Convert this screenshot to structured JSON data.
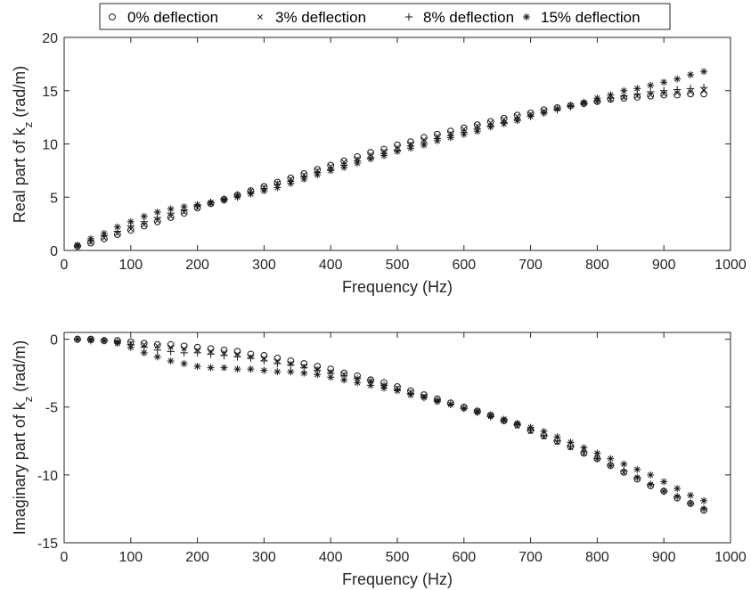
{
  "legend": {
    "items": [
      {
        "marker": "circle",
        "label": "0% deflection"
      },
      {
        "marker": "x",
        "label": "3% deflection"
      },
      {
        "marker": "plus",
        "label": "8% deflection"
      },
      {
        "marker": "star",
        "label": "15% deflection"
      }
    ]
  },
  "chart_data": [
    {
      "type": "scatter",
      "xlabel": "Frequency (Hz)",
      "ylabel_main": "Real part of k",
      "ylabel_sub": "z",
      "ylabel_unit": " (rad/m)",
      "xlim": [
        0,
        1000
      ],
      "ylim": [
        0,
        20
      ],
      "xticks": [
        0,
        100,
        200,
        300,
        400,
        500,
        600,
        700,
        800,
        900,
        1000
      ],
      "yticks": [
        0,
        5,
        10,
        15,
        20
      ],
      "grid": false,
      "x": [
        20,
        40,
        60,
        80,
        100,
        120,
        140,
        160,
        180,
        200,
        220,
        240,
        260,
        280,
        300,
        320,
        340,
        360,
        380,
        400,
        420,
        440,
        460,
        480,
        500,
        520,
        540,
        560,
        580,
        600,
        620,
        640,
        660,
        680,
        700,
        720,
        740,
        760,
        780,
        800,
        820,
        840,
        860,
        880,
        900,
        920,
        940,
        960
      ],
      "series": [
        {
          "name": "0% deflection",
          "marker": "circle",
          "values": [
            0.4,
            0.7,
            1.1,
            1.5,
            1.9,
            2.3,
            2.7,
            3.1,
            3.5,
            4.0,
            4.4,
            4.8,
            5.2,
            5.6,
            6.0,
            6.4,
            6.8,
            7.2,
            7.6,
            8.0,
            8.4,
            8.8,
            9.2,
            9.5,
            9.9,
            10.2,
            10.6,
            10.9,
            11.2,
            11.5,
            11.8,
            12.1,
            12.4,
            12.7,
            12.9,
            13.2,
            13.4,
            13.6,
            13.8,
            14.0,
            14.2,
            14.3,
            14.4,
            14.5,
            14.6,
            14.6,
            14.7,
            14.7
          ]
        },
        {
          "name": "3% deflection",
          "marker": "x",
          "values": [
            0.4,
            0.8,
            1.2,
            1.6,
            2.0,
            2.4,
            2.8,
            3.2,
            3.6,
            4.0,
            4.4,
            4.8,
            5.2,
            5.6,
            5.9,
            6.3,
            6.7,
            7.1,
            7.5,
            7.9,
            8.3,
            8.6,
            9.0,
            9.3,
            9.7,
            10.0,
            10.4,
            10.7,
            11.0,
            11.4,
            11.7,
            12.0,
            12.3,
            12.6,
            12.8,
            13.1,
            13.3,
            13.6,
            13.8,
            14.0,
            14.2,
            14.4,
            14.5,
            14.6,
            14.7,
            14.8,
            14.9,
            15.0
          ]
        },
        {
          "name": "8% deflection",
          "marker": "plus",
          "values": [
            0.4,
            0.9,
            1.4,
            1.8,
            2.3,
            2.7,
            3.1,
            3.5,
            3.8,
            4.2,
            4.5,
            4.8,
            5.2,
            5.5,
            5.8,
            6.2,
            6.5,
            6.9,
            7.3,
            7.6,
            8.0,
            8.4,
            8.7,
            9.1,
            9.4,
            9.8,
            10.1,
            10.5,
            10.8,
            11.1,
            11.4,
            11.7,
            12.0,
            12.3,
            12.6,
            12.9,
            13.2,
            13.5,
            13.8,
            14.0,
            14.3,
            14.5,
            14.7,
            14.9,
            15.0,
            15.1,
            15.2,
            15.3
          ]
        },
        {
          "name": "15% deflection",
          "marker": "star",
          "values": [
            0.5,
            1.1,
            1.6,
            2.2,
            2.7,
            3.2,
            3.6,
            3.9,
            4.1,
            4.3,
            4.5,
            4.7,
            5.0,
            5.3,
            5.6,
            5.9,
            6.3,
            6.7,
            7.1,
            7.5,
            7.8,
            8.2,
            8.6,
            8.9,
            9.3,
            9.6,
            9.9,
            10.3,
            10.6,
            10.9,
            11.2,
            11.6,
            11.9,
            12.2,
            12.6,
            12.9,
            13.3,
            13.6,
            13.9,
            14.3,
            14.6,
            15.0,
            15.2,
            15.5,
            15.8,
            16.1,
            16.5,
            16.8
          ]
        }
      ]
    },
    {
      "type": "scatter",
      "xlabel": "Frequency (Hz)",
      "ylabel_main": "Imaginary part of k",
      "ylabel_sub": "z",
      "ylabel_unit": " (rad/m)",
      "xlim": [
        0,
        1000
      ],
      "ylim": [
        -15,
        0.5
      ],
      "xticks": [
        0,
        100,
        200,
        300,
        400,
        500,
        600,
        700,
        800,
        900,
        1000
      ],
      "yticks": [
        -15,
        -10,
        -5,
        0
      ],
      "grid": false,
      "x": [
        20,
        40,
        60,
        80,
        100,
        120,
        140,
        160,
        180,
        200,
        220,
        240,
        260,
        280,
        300,
        320,
        340,
        360,
        380,
        400,
        420,
        440,
        460,
        480,
        500,
        520,
        540,
        560,
        580,
        600,
        620,
        640,
        660,
        680,
        700,
        720,
        740,
        760,
        780,
        800,
        820,
        840,
        860,
        880,
        900,
        920,
        940,
        960
      ],
      "series": [
        {
          "name": "0% deflection",
          "marker": "circle",
          "values": [
            0.0,
            0.0,
            -0.1,
            -0.1,
            -0.2,
            -0.3,
            -0.4,
            -0.4,
            -0.5,
            -0.6,
            -0.7,
            -0.8,
            -0.9,
            -1.1,
            -1.2,
            -1.4,
            -1.6,
            -1.8,
            -2.0,
            -2.2,
            -2.5,
            -2.7,
            -3.0,
            -3.2,
            -3.5,
            -3.8,
            -4.1,
            -4.4,
            -4.7,
            -5.0,
            -5.3,
            -5.6,
            -6.0,
            -6.3,
            -6.7,
            -7.1,
            -7.5,
            -7.9,
            -8.4,
            -8.8,
            -9.3,
            -9.8,
            -10.3,
            -10.8,
            -11.2,
            -11.7,
            -12.1,
            -12.6
          ]
        },
        {
          "name": "3% deflection",
          "marker": "x",
          "values": [
            0.0,
            -0.1,
            -0.1,
            -0.2,
            -0.3,
            -0.4,
            -0.5,
            -0.6,
            -0.7,
            -0.8,
            -0.9,
            -1.0,
            -1.1,
            -1.3,
            -1.4,
            -1.6,
            -1.8,
            -2.0,
            -2.2,
            -2.4,
            -2.6,
            -2.9,
            -3.1,
            -3.4,
            -3.6,
            -3.9,
            -4.2,
            -4.5,
            -4.8,
            -5.1,
            -5.4,
            -5.7,
            -6.0,
            -6.4,
            -6.8,
            -7.2,
            -7.6,
            -8.0,
            -8.4,
            -8.8,
            -9.3,
            -9.8,
            -10.2,
            -10.7,
            -11.2,
            -11.6,
            -12.1,
            -12.5
          ]
        },
        {
          "name": "8% deflection",
          "marker": "plus",
          "values": [
            0.0,
            -0.1,
            -0.1,
            -0.2,
            -0.4,
            -0.6,
            -0.8,
            -0.9,
            -1.0,
            -1.0,
            -1.1,
            -1.2,
            -1.3,
            -1.4,
            -1.6,
            -1.8,
            -1.9,
            -2.1,
            -2.3,
            -2.5,
            -2.7,
            -2.9,
            -3.1,
            -3.4,
            -3.7,
            -4.0,
            -4.3,
            -4.5,
            -4.8,
            -5.1,
            -5.4,
            -5.7,
            -6.0,
            -6.3,
            -6.7,
            -7.1,
            -7.5,
            -7.9,
            -8.3,
            -8.8,
            -9.3,
            -9.7,
            -10.2,
            -10.7,
            -11.2,
            -11.6,
            -12.1,
            -12.5
          ]
        },
        {
          "name": "15% deflection",
          "marker": "star",
          "values": [
            0.0,
            0.0,
            -0.1,
            -0.3,
            -0.6,
            -1.0,
            -1.3,
            -1.6,
            -1.8,
            -2.0,
            -2.1,
            -2.1,
            -2.2,
            -2.2,
            -2.3,
            -2.4,
            -2.4,
            -2.5,
            -2.6,
            -2.8,
            -3.0,
            -3.2,
            -3.4,
            -3.6,
            -3.8,
            -4.1,
            -4.3,
            -4.6,
            -4.8,
            -5.1,
            -5.3,
            -5.6,
            -5.9,
            -6.2,
            -6.5,
            -6.8,
            -7.2,
            -7.6,
            -8.0,
            -8.4,
            -8.8,
            -9.2,
            -9.6,
            -10.0,
            -10.5,
            -11.0,
            -11.5,
            -11.9
          ]
        }
      ]
    }
  ]
}
